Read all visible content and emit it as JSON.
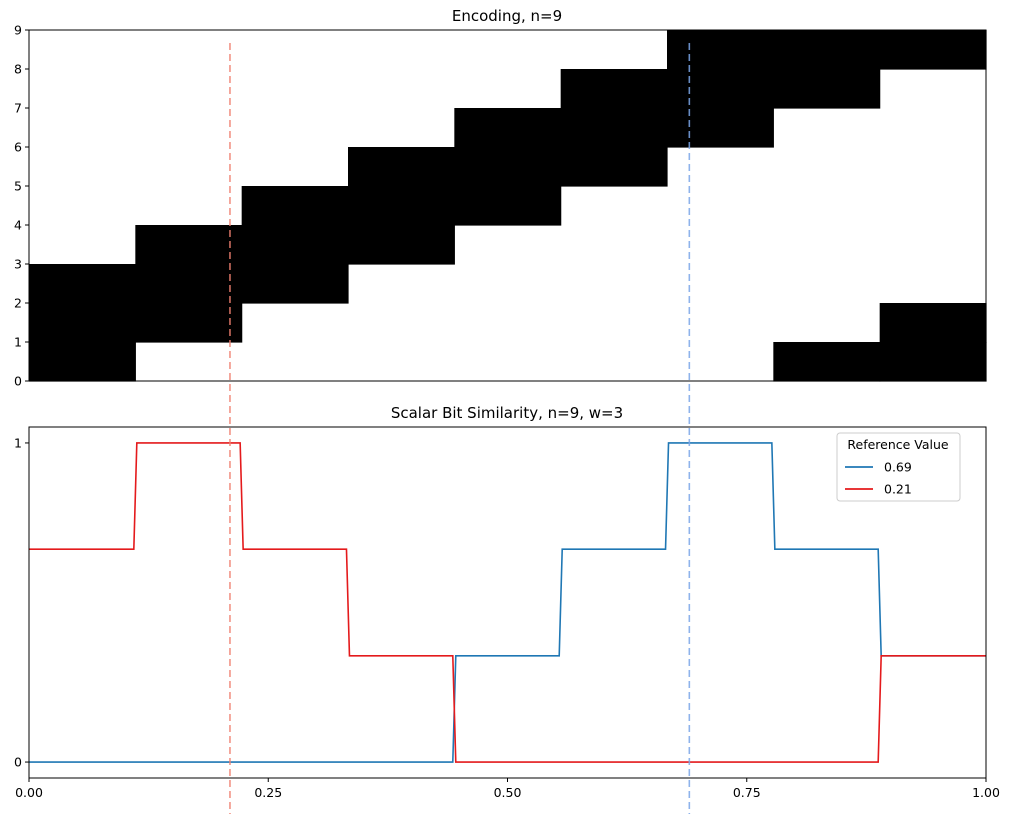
{
  "chart_data": [
    {
      "type": "heatmap",
      "title": "Encoding, n=9",
      "xlim": [
        0,
        1
      ],
      "ylim": [
        0,
        9
      ],
      "y_ticks": [
        "0",
        "1",
        "2",
        "3",
        "4",
        "5",
        "6",
        "7",
        "8",
        "9"
      ],
      "x_ticks": [],
      "grid": false,
      "bins": 9,
      "active_bits_per_bin": [
        [
          0,
          1,
          2
        ],
        [
          1,
          2,
          3
        ],
        [
          2,
          3,
          4
        ],
        [
          3,
          4,
          5
        ],
        [
          4,
          5,
          6
        ],
        [
          5,
          6,
          7
        ],
        [
          6,
          7,
          8
        ],
        [
          7,
          8,
          0
        ],
        [
          8,
          0,
          1
        ]
      ],
      "cell_color": "#000000",
      "background_color": "#ffffff",
      "reference_lines": [
        {
          "x": 0.21,
          "color": "#f08070"
        },
        {
          "x": 0.69,
          "color": "#7aa6e8"
        }
      ]
    },
    {
      "type": "line",
      "title": "Scalar Bit Similarity, n=9, w=3",
      "xlim": [
        0,
        1
      ],
      "ylim": [
        -0.05,
        1.05
      ],
      "x_ticks": [
        "0.00",
        "0.25",
        "0.50",
        "0.75",
        "1.00"
      ],
      "y_ticks": [
        "0",
        "1"
      ],
      "grid": false,
      "legend": {
        "title": "Reference Value",
        "position": "top-right"
      },
      "bin_edges": [
        0,
        0.1111,
        0.2222,
        0.3333,
        0.4444,
        0.5556,
        0.6667,
        0.7778,
        0.8889,
        1.0
      ],
      "series": [
        {
          "name": "0.69",
          "color": "#1f77b4",
          "values": [
            0,
            0,
            0,
            0,
            0.333,
            0.667,
            1,
            0.667,
            0.333
          ]
        },
        {
          "name": "0.21",
          "color": "#e41a1c",
          "values": [
            0.667,
            1,
            0.667,
            0.333,
            0,
            0,
            0,
            0,
            0.333
          ]
        }
      ]
    }
  ]
}
